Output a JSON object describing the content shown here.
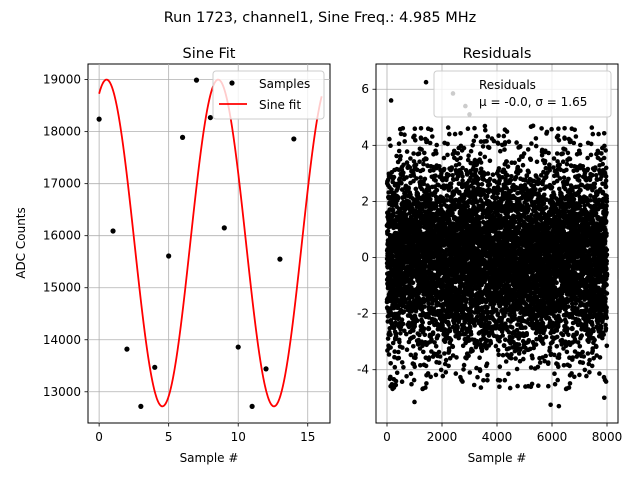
{
  "suptitle": "Run 1723, channel1, Sine Freq.: 4.985 MHz",
  "colors": {
    "fit_line": "#ff0000",
    "points": "#000000",
    "grid": "#b0b0b0"
  },
  "chart_data": [
    {
      "type": "line",
      "title": "Sine Fit",
      "xlabel": "Sample #",
      "ylabel": "ADC Counts",
      "xlim": [
        -0.8,
        16.6
      ],
      "ylim": [
        12400,
        19300
      ],
      "xticks": [
        0,
        5,
        10,
        15
      ],
      "yticks": [
        13000,
        14000,
        15000,
        16000,
        17000,
        18000,
        19000
      ],
      "grid": true,
      "legend": {
        "position": "top-right",
        "entries": [
          "Samples",
          "Sine fit"
        ]
      },
      "series": [
        {
          "name": "Samples",
          "style": "points",
          "x": [
            0,
            1,
            2,
            3,
            4,
            5,
            6,
            7,
            8,
            9,
            10,
            11,
            12,
            13,
            14
          ],
          "y": [
            18240,
            16090,
            13820,
            12720,
            13470,
            15610,
            17890,
            18990,
            18270,
            16150,
            13860,
            12720,
            13440,
            15550,
            17860
          ]
        },
        {
          "name": "Sine fit",
          "style": "line",
          "model": {
            "amplitude": 3140,
            "offset": 15860,
            "period_samples": 8.024,
            "phase_deg": 66,
            "x_range": [
              0,
              16
            ]
          }
        }
      ]
    },
    {
      "type": "scatter",
      "title": "Residuals",
      "xlabel": "Sample #",
      "ylabel": "",
      "xlim": [
        -400,
        8400
      ],
      "ylim": [
        -5.9,
        6.9
      ],
      "xticks": [
        0,
        2000,
        4000,
        6000,
        8000
      ],
      "yticks": [
        -4,
        -2,
        0,
        2,
        4,
        6
      ],
      "grid": true,
      "legend": {
        "position": "top-right",
        "title": "Residuals",
        "entry": "μ = -0.0, σ = 1.65"
      },
      "stats": {
        "mean": -0.0,
        "sigma": 1.65,
        "n_points": 8000
      },
      "series": [
        {
          "name": "Residuals",
          "outliers": [
            {
              "x": 150,
              "y": 5.6
            },
            {
              "x": 1420,
              "y": 6.25
            },
            {
              "x": 2400,
              "y": 5.85
            },
            {
              "x": 2850,
              "y": 5.4
            },
            {
              "x": 3000,
              "y": 5.1
            },
            {
              "x": 1000,
              "y": -5.15
            },
            {
              "x": 5950,
              "y": -5.25
            },
            {
              "x": 6250,
              "y": -5.3
            },
            {
              "x": 7900,
              "y": -5.0
            }
          ]
        }
      ]
    }
  ]
}
